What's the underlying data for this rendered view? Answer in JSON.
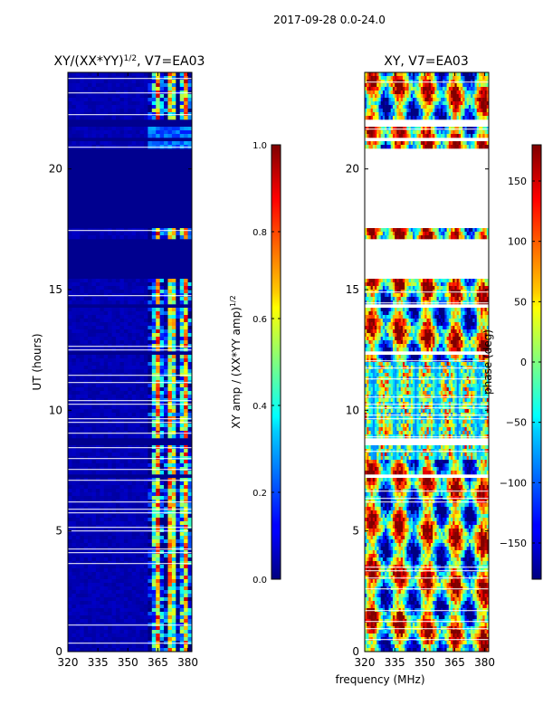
{
  "suptitle": "2017-09-28 0.0-24.0",
  "shared_xlabel": "frequency (MHz)",
  "chart_data": [
    {
      "type": "heatmap",
      "title_main": "XY/(XX*YY)",
      "title_sup": "1/2",
      "title_tail": ", V7=EA03",
      "ylabel": "UT (hours)",
      "xlim": [
        320,
        382
      ],
      "ylim": [
        0,
        24
      ],
      "xticks": [
        320,
        335,
        350,
        365,
        380
      ],
      "yticks": [
        0,
        5,
        10,
        15,
        20
      ],
      "colorbar": {
        "label_main": "XY amp / (XX*YY amp)",
        "label_sup": "1/2",
        "range": [
          0.0,
          1.0
        ],
        "ticks": [
          0.0,
          0.2,
          0.4,
          0.6,
          0.8,
          1.0
        ],
        "tick_labels": [
          "0.0",
          "0.2",
          "0.4",
          "0.6",
          "0.8",
          "1.0"
        ],
        "colormap": "jet"
      },
      "data_band_mhz": [
        360,
        382
      ],
      "gaps_ut": [
        [
          17.6,
          20.8
        ],
        [
          15.4,
          17.1
        ],
        [
          21.8,
          22.1
        ],
        [
          7.2,
          7.4
        ],
        [
          8.6,
          8.9
        ],
        [
          12.3,
          12.4
        ],
        [
          14.3,
          14.4
        ],
        [
          21.2,
          21.3
        ]
      ]
    },
    {
      "type": "heatmap",
      "title_main": "XY, V7=EA03",
      "ylabel": "",
      "xlim": [
        320,
        382
      ],
      "ylim": [
        0,
        24
      ],
      "xticks": [
        320,
        335,
        350,
        365,
        380
      ],
      "yticks": [
        0,
        5,
        10,
        15,
        20
      ],
      "colorbar": {
        "label_main": "phase (deg)",
        "range": [
          -180,
          180
        ],
        "ticks": [
          -150,
          -100,
          -50,
          0,
          50,
          100,
          150
        ],
        "tick_labels": [
          "−150",
          "−100",
          "−50",
          "0",
          "50",
          "100",
          "150"
        ],
        "colormap": "jet"
      },
      "gaps_ut": [
        [
          17.6,
          20.8
        ],
        [
          15.4,
          17.1
        ],
        [
          21.8,
          22.1
        ],
        [
          7.2,
          7.4
        ],
        [
          8.6,
          8.9
        ],
        [
          12.3,
          12.4
        ],
        [
          14.3,
          14.4
        ],
        [
          21.2,
          21.3
        ]
      ]
    }
  ]
}
